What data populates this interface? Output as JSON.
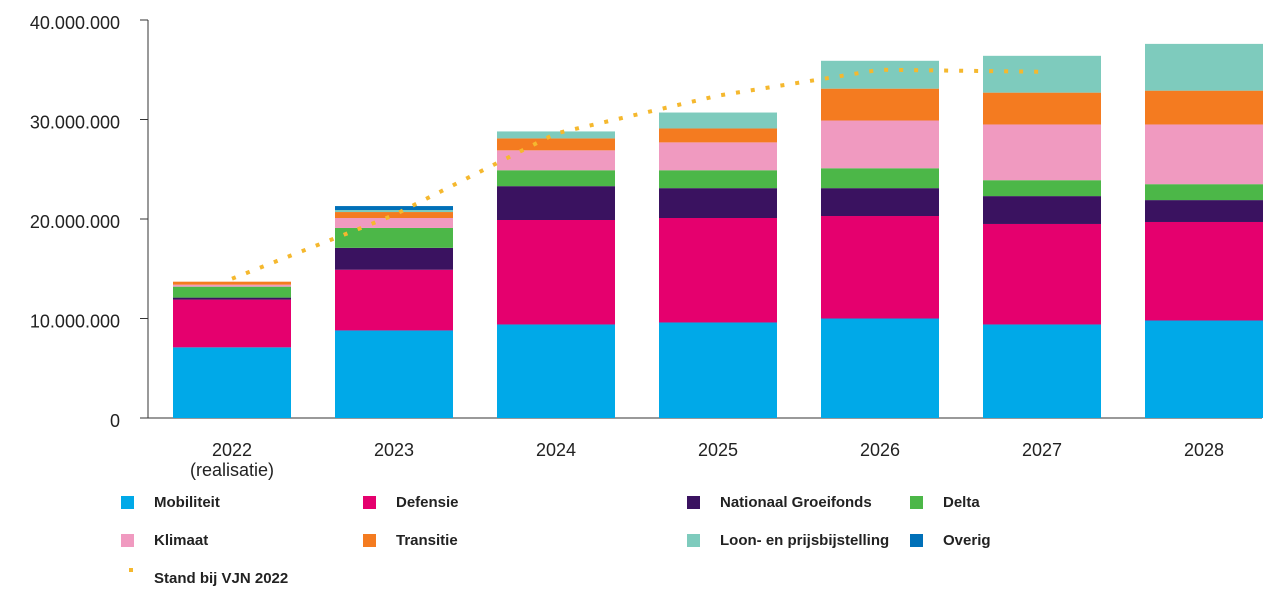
{
  "chart_data": {
    "type": "bar",
    "stacked": true,
    "categories": [
      "2022\n(realisatie)",
      "2023",
      "2024",
      "2025",
      "2026",
      "2027",
      "2028"
    ],
    "series": [
      {
        "name": "Mobiliteit",
        "color": "#00a9e8",
        "values": [
          7100000,
          8800000,
          9400000,
          9600000,
          10000000,
          9400000,
          9800000
        ]
      },
      {
        "name": "Defensie",
        "color": "#e5006e",
        "values": [
          4800000,
          6100000,
          10500000,
          10500000,
          10300000,
          10100000,
          9900000
        ]
      },
      {
        "name": "Nationaal Groeifonds",
        "color": "#3a1260",
        "values": [
          200000,
          2200000,
          3400000,
          3000000,
          2800000,
          2800000,
          2200000
        ]
      },
      {
        "name": "Delta",
        "color": "#4cb748",
        "values": [
          1100000,
          2000000,
          1600000,
          1800000,
          2000000,
          1600000,
          1600000
        ]
      },
      {
        "name": "Klimaat",
        "color": "#f09ac0",
        "values": [
          200000,
          1000000,
          2000000,
          2800000,
          4800000,
          5600000,
          6000000
        ]
      },
      {
        "name": "Transitie",
        "color": "#f47b20",
        "values": [
          300000,
          600000,
          1200000,
          1400000,
          3200000,
          3200000,
          3400000
        ]
      },
      {
        "name": "Loon- en prijsbijstelling",
        "color": "#7ecbbd",
        "values": [
          0,
          200000,
          700000,
          1600000,
          2800000,
          3700000,
          4700000
        ]
      },
      {
        "name": "Overig",
        "color": "#0070b8",
        "values": [
          0,
          400000,
          0,
          0,
          0,
          0,
          0
        ]
      },
      {
        "name": "Stand bij VJN 2022",
        "type": "line",
        "style": "dotted",
        "color": "#f5b82e",
        "values": [
          14000000,
          20400000,
          28600000,
          32400000,
          35000000,
          34800000,
          null
        ]
      }
    ],
    "ylim": [
      0,
      40000000
    ],
    "yticks": [
      {
        "value": 0,
        "label": "0"
      },
      {
        "value": 10000000,
        "label": "10.000.000"
      },
      {
        "value": 20000000,
        "label": "20.000.000"
      },
      {
        "value": 30000000,
        "label": "30.000.000"
      },
      {
        "value": 40000000,
        "label": "40.000.000"
      }
    ],
    "grid": false,
    "legend": "bottom"
  }
}
